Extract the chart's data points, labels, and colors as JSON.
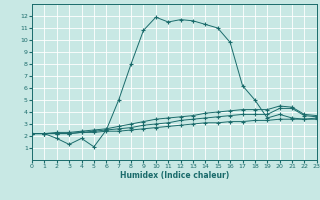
{
  "xlabel": "Humidex (Indice chaleur)",
  "xlim": [
    0,
    23
  ],
  "ylim": [
    0,
    13
  ],
  "xticks": [
    0,
    1,
    2,
    3,
    4,
    5,
    6,
    7,
    8,
    9,
    10,
    11,
    12,
    13,
    14,
    15,
    16,
    17,
    18,
    19,
    20,
    21,
    22,
    23
  ],
  "yticks": [
    1,
    2,
    3,
    4,
    5,
    6,
    7,
    8,
    9,
    10,
    11,
    12
  ],
  "bg_color": "#c8e8e4",
  "grid_color": "#ffffff",
  "line_color": "#1a6b6b",
  "main_x": [
    0,
    1,
    2,
    3,
    4,
    5,
    6,
    7,
    8,
    9,
    10,
    11,
    12,
    13,
    14,
    15,
    16,
    17,
    18,
    19,
    20,
    21,
    22,
    23
  ],
  "main_y": [
    2.2,
    2.2,
    1.8,
    1.3,
    1.8,
    1.1,
    2.5,
    5.0,
    8.0,
    10.8,
    11.9,
    11.5,
    11.7,
    11.6,
    11.3,
    11.0,
    9.8,
    6.2,
    5.0,
    3.5,
    3.8,
    3.5,
    3.4,
    3.5
  ],
  "line1_x": [
    0,
    1,
    2,
    3,
    4,
    5,
    6,
    7,
    8,
    9,
    10,
    11,
    12,
    13,
    14,
    15,
    16,
    17,
    18,
    19,
    20,
    21,
    22,
    23
  ],
  "line1_y": [
    2.2,
    2.2,
    2.2,
    2.2,
    2.3,
    2.3,
    2.4,
    2.4,
    2.5,
    2.6,
    2.7,
    2.8,
    2.9,
    3.0,
    3.1,
    3.1,
    3.2,
    3.2,
    3.3,
    3.3,
    3.4,
    3.4,
    3.4,
    3.4
  ],
  "line2_x": [
    0,
    1,
    2,
    3,
    4,
    5,
    6,
    7,
    8,
    9,
    10,
    11,
    12,
    13,
    14,
    15,
    16,
    17,
    18,
    19,
    20,
    21,
    22,
    23
  ],
  "line2_y": [
    2.2,
    2.2,
    2.2,
    2.2,
    2.3,
    2.4,
    2.5,
    2.6,
    2.7,
    2.9,
    3.0,
    3.1,
    3.3,
    3.4,
    3.5,
    3.6,
    3.7,
    3.8,
    3.8,
    3.8,
    4.3,
    4.3,
    3.7,
    3.6
  ],
  "line3_x": [
    0,
    1,
    2,
    3,
    4,
    5,
    6,
    7,
    8,
    9,
    10,
    11,
    12,
    13,
    14,
    15,
    16,
    17,
    18,
    19,
    20,
    21,
    22,
    23
  ],
  "line3_y": [
    2.2,
    2.2,
    2.3,
    2.3,
    2.4,
    2.5,
    2.6,
    2.8,
    3.0,
    3.2,
    3.4,
    3.5,
    3.6,
    3.7,
    3.9,
    4.0,
    4.1,
    4.2,
    4.2,
    4.2,
    4.5,
    4.4,
    3.8,
    3.7
  ]
}
